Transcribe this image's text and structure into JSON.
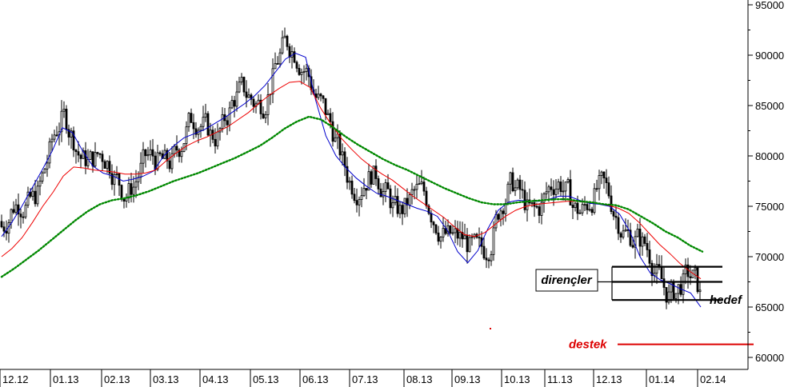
{
  "chart_data": {
    "type": "candlestick",
    "x_ticks": [
      "12.12",
      "01.13",
      "02.13",
      "03.13",
      "04.13",
      "05.13",
      "06.13",
      "07.13",
      "08.13",
      "09.13",
      "10.13",
      "11.13",
      "12.13",
      "01.14",
      "02.14"
    ],
    "y_ticks": [
      "95000",
      "90000",
      "85000",
      "80000",
      "75000",
      "70000",
      "65000",
      "60000"
    ],
    "ylim": [
      60000,
      95000
    ],
    "grid": false,
    "colors": {
      "candle": "#000000",
      "ma_short": "#0000cc",
      "ma_mid": "#ee0000",
      "ma_long": "#008800",
      "resistance": "#000000",
      "support": "#dd0000",
      "support_label": "#dd0000"
    },
    "series": [
      {
        "style": "line",
        "color_key": "ma_short",
        "values": [
          72000,
          73400,
          75000,
          76800,
          78600,
          80500,
          82800,
          82300,
          80500,
          79000,
          78300,
          78000,
          77500,
          77700,
          78000,
          78500,
          80000,
          81000,
          81800,
          82200,
          82600,
          83200,
          83800,
          84500,
          85200,
          86000,
          87000,
          88300,
          89600,
          90200,
          89800,
          85500,
          82000,
          80000,
          78800,
          77800,
          77000,
          76300,
          76000,
          75600,
          75200,
          74800,
          74500,
          74000,
          72600,
          70500,
          69400,
          70600,
          72800,
          74600,
          75400,
          75600,
          75500,
          75500,
          75700,
          76000,
          76000,
          75600,
          75300,
          75200,
          75000,
          74200,
          72500,
          70000,
          68400,
          67700,
          67300,
          66800,
          66400,
          65000
        ]
      },
      {
        "style": "line",
        "color_key": "ma_mid",
        "values": [
          70000,
          70800,
          71900,
          73400,
          75000,
          76400,
          78000,
          78900,
          78800,
          78600,
          78500,
          78400,
          78200,
          78200,
          78300,
          78600,
          79500,
          80300,
          81000,
          81500,
          81900,
          82400,
          82900,
          83600,
          84300,
          85200,
          86000,
          86700,
          87300,
          87400,
          86800,
          84800,
          83200,
          81800,
          80700,
          79700,
          78900,
          78200,
          77600,
          76800,
          76000,
          75300,
          74600,
          73900,
          73000,
          72200,
          72000,
          72400,
          73200,
          74000,
          74600,
          75000,
          75200,
          75300,
          75400,
          75500,
          75500,
          75400,
          75300,
          75100,
          74800,
          74300,
          73400,
          72300,
          71200,
          70300,
          69300,
          68500,
          67800
        ]
      },
      {
        "style": "dotted",
        "color_key": "ma_long",
        "values": [
          68000,
          68800,
          69700,
          70600,
          71600,
          72600,
          73600,
          74500,
          75200,
          75600,
          75800,
          76100,
          76500,
          77000,
          77500,
          77900,
          78300,
          78800,
          79300,
          79800,
          80400,
          81000,
          81800,
          82700,
          83400,
          83900,
          83600,
          82800,
          81900,
          81100,
          80400,
          79700,
          79100,
          78600,
          78000,
          77400,
          76800,
          76300,
          75800,
          75400,
          75200,
          75200,
          75400,
          75500,
          75600,
          75700,
          75700,
          75500,
          75400,
          75200,
          75100,
          74700,
          74000,
          73300,
          72500,
          71900,
          71100,
          70500
        ]
      }
    ],
    "annotations": [
      {
        "text": "dirençler",
        "color_key": "resistance",
        "levels": [
          69000,
          67500,
          65700
        ]
      },
      {
        "text": "hedef",
        "color_key": "resistance",
        "level": 65700
      },
      {
        "text": "destek",
        "color_key": "support",
        "level": 61300
      }
    ]
  }
}
